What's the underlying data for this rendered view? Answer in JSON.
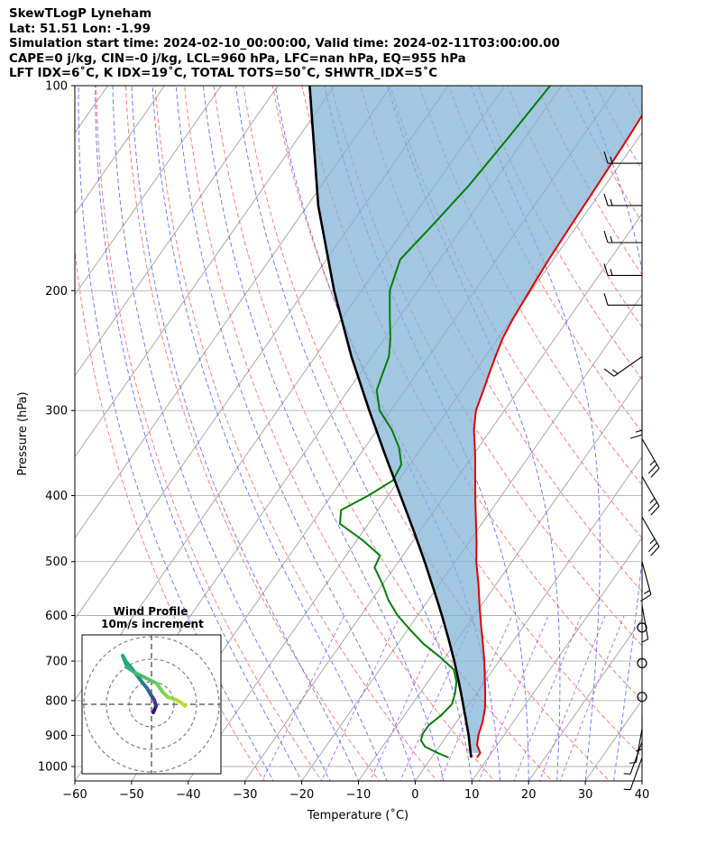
{
  "header": {
    "line1": "SkewTLogP Lyneham",
    "line2": "Lat: 51.51   Lon: -1.99",
    "line3": "Simulation start time: 2024-02-10_00:00:00, Valid time: 2024-02-11T03:00:00.00",
    "line4": "CAPE=0 j/kg, CIN=-0 j/kg, LCL=960 hPa, LFC=nan hPa, EQ=955 hPa",
    "line5": "LFT IDX=6˚C, K IDX=19˚C, TOTAL TOTS=50˚C, SHWTR_IDX=5˚C"
  },
  "chart_data": {
    "type": "line",
    "subtype": "skew-t log-p",
    "xlabel": "Temperature (˚C)",
    "ylabel": "Pressure (hPa)",
    "xlim": [
      -60,
      40
    ],
    "ylim": [
      1050,
      100
    ],
    "yscale": "log",
    "grid": true,
    "x_ticks": [
      -60,
      -50,
      -40,
      -30,
      -20,
      -10,
      0,
      10,
      20,
      30,
      40
    ],
    "x_tick_labels": [
      "−60",
      "−50",
      "−40",
      "−30",
      "−20",
      "−10",
      "0",
      "10",
      "20",
      "30",
      "40"
    ],
    "y_ticks": [
      100,
      200,
      300,
      400,
      500,
      600,
      700,
      800,
      900,
      1000
    ],
    "y_tick_labels": [
      "100",
      "200",
      "300",
      "400",
      "500",
      "600",
      "700",
      "800",
      "900",
      "1000"
    ],
    "colors": {
      "temperature": "#e00000",
      "dewpoint": "#007f00",
      "parcel": "#000000",
      "cape_fill": "#7fb0d6",
      "dry_adiabat": "#ff4040",
      "moist_adiabat": "#3040ff",
      "mixing_ratio": "#a040ff",
      "isotherm": "#a0a0a0"
    },
    "series": [
      {
        "pressure": [
          970,
          955,
          930,
          900,
          860,
          820,
          780,
          740,
          700,
          660,
          620,
          580,
          540,
          500,
          470,
          440,
          410,
          380,
          350,
          320,
          300,
          280,
          265,
          250,
          235,
          220,
          200,
          180,
          160,
          140,
          120,
          100
        ],
        "values": [
          8.0,
          8.0,
          6.5,
          5.5,
          4.6,
          3.3,
          1.5,
          -0.5,
          -2.6,
          -5.0,
          -7.6,
          -10.3,
          -13.1,
          -16.3,
          -18.5,
          -21.0,
          -23.7,
          -26.5,
          -29.5,
          -33.0,
          -35.0,
          -36.2,
          -37.2,
          -38.2,
          -39.2,
          -39.8,
          -40.3,
          -40.8,
          -41.1,
          -41.4,
          -41.8,
          -42.5
        ]
      },
      {
        "pressure": [
          970,
          955,
          935,
          915,
          895,
          870,
          840,
          810,
          780,
          750,
          720,
          690,
          660,
          630,
          600,
          570,
          540,
          510,
          490,
          465,
          440,
          420,
          400,
          380,
          360,
          340,
          320,
          300,
          280,
          265,
          250,
          235,
          220,
          200,
          180,
          160,
          140,
          120,
          100
        ],
        "values": [
          3.0,
          0.5,
          -2.5,
          -4.0,
          -4.5,
          -4.5,
          -3.5,
          -3.0,
          -3.8,
          -5.0,
          -7.0,
          -11.0,
          -15.5,
          -19.5,
          -23.5,
          -27.0,
          -30.0,
          -33.5,
          -34.0,
          -39.0,
          -45.0,
          -46.5,
          -43.5,
          -41.0,
          -41.5,
          -44.0,
          -47.5,
          -52.0,
          -55.0,
          -56.0,
          -57.0,
          -59.0,
          -61.5,
          -65.0,
          -67.0,
          -65.5,
          -64.0,
          -63.0,
          -62.0
        ]
      },
      {
        "pressure": [
          970,
          955,
          900,
          850,
          800,
          750,
          700,
          650,
          600,
          550,
          500,
          450,
          400,
          350,
          300,
          250,
          200,
          150,
          100
        ],
        "values": [
          7.0,
          6.3,
          3.8,
          1.2,
          -1.6,
          -4.6,
          -7.9,
          -11.6,
          -15.7,
          -20.3,
          -25.4,
          -31.2,
          -37.8,
          -45.3,
          -53.8,
          -63.6,
          -74.8,
          -88.1,
          -104.4
        ]
      }
    ],
    "wind_barbs": {
      "pressure": [
        130,
        150,
        170,
        190,
        210,
        250,
        290,
        330,
        375,
        430,
        500,
        580,
        625,
        705,
        790,
        840,
        880,
        920,
        970
      ],
      "speed_kt": [
        15,
        15,
        15,
        15,
        10,
        15,
        15,
        25,
        25,
        25,
        15,
        5,
        0,
        0,
        0,
        5,
        5,
        5,
        5
      ],
      "direction_deg": [
        270,
        270,
        270,
        270,
        270,
        235,
        180,
        150,
        150,
        150,
        165,
        170,
        0,
        0,
        0,
        180,
        190,
        200,
        200
      ]
    },
    "inset": {
      "title": "Wind Profile",
      "subtitle": "10m/s increment",
      "type": "hodograph"
    }
  }
}
